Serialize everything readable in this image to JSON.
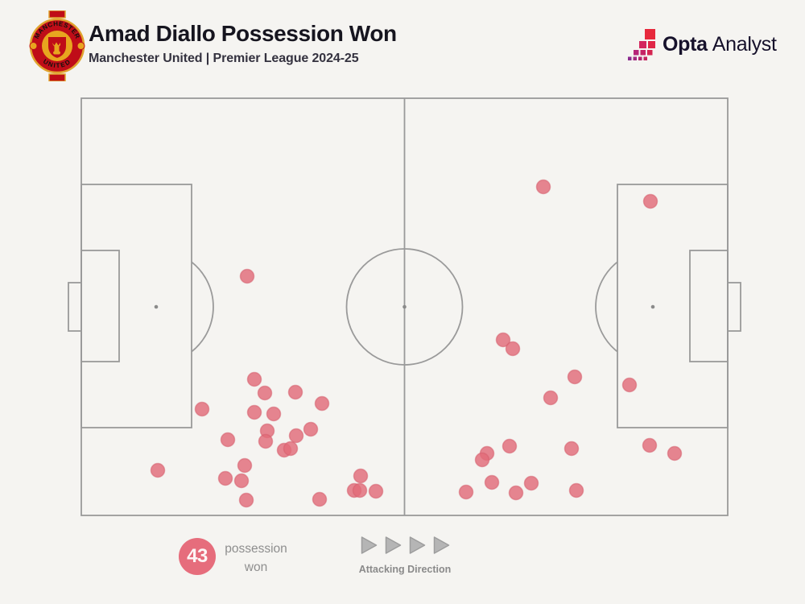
{
  "header": {
    "title": "Amad Diallo Possession Won",
    "subtitle": "Manchester United | Premier League 2024-25",
    "crest_text_top": "MANCHESTER",
    "crest_text_bottom": "UNITED"
  },
  "brand": {
    "name_bold": "Opta",
    "name_regular": "Analyst"
  },
  "footer": {
    "stat_value": "43",
    "stat_label_line1": "possession",
    "stat_label_line2": "won",
    "direction_label": "Attacking Direction"
  },
  "colors": {
    "background": "#f5f4f1",
    "pitch_line": "#9a9a9a",
    "dot_fill": "#e26b79",
    "dot_stroke": "#d65f6e",
    "badge_fill": "#e66d7c",
    "title_color": "#16151f",
    "muted_text": "#8e8e8e",
    "arrow_fill": "#b5b5b5"
  },
  "chart_data": {
    "type": "scatter",
    "title": "Amad Diallo Possession Won",
    "subtitle": "Manchester United | Premier League 2024-25",
    "count": 43,
    "attacking_direction": "left-to-right",
    "pitch_bounds": {
      "x_min": 101,
      "x_max": 904,
      "y_min": 122,
      "y_max": 640
    },
    "marker_radius": 8.5,
    "points": [
      [
        307,
        343
      ],
      [
        675,
        232
      ],
      [
        808,
        250
      ],
      [
        316,
        471
      ],
      [
        329,
        488
      ],
      [
        367,
        487
      ],
      [
        400,
        501
      ],
      [
        251,
        508
      ],
      [
        316,
        512
      ],
      [
        340,
        514
      ],
      [
        332,
        535
      ],
      [
        386,
        533
      ],
      [
        368,
        541
      ],
      [
        330,
        548
      ],
      [
        283,
        546
      ],
      [
        353,
        559
      ],
      [
        361,
        557
      ],
      [
        196,
        584
      ],
      [
        304,
        578
      ],
      [
        280,
        594
      ],
      [
        300,
        597
      ],
      [
        306,
        621
      ],
      [
        397,
        620
      ],
      [
        448,
        591
      ],
      [
        440,
        609
      ],
      [
        447,
        609
      ],
      [
        467,
        610
      ],
      [
        625,
        422
      ],
      [
        637,
        433
      ],
      [
        714,
        468
      ],
      [
        782,
        478
      ],
      [
        684,
        494
      ],
      [
        633,
        554
      ],
      [
        605,
        563
      ],
      [
        599,
        571
      ],
      [
        710,
        557
      ],
      [
        807,
        553
      ],
      [
        838,
        563
      ],
      [
        611,
        599
      ],
      [
        660,
        600
      ],
      [
        579,
        611
      ],
      [
        641,
        612
      ],
      [
        716,
        609
      ]
    ]
  }
}
